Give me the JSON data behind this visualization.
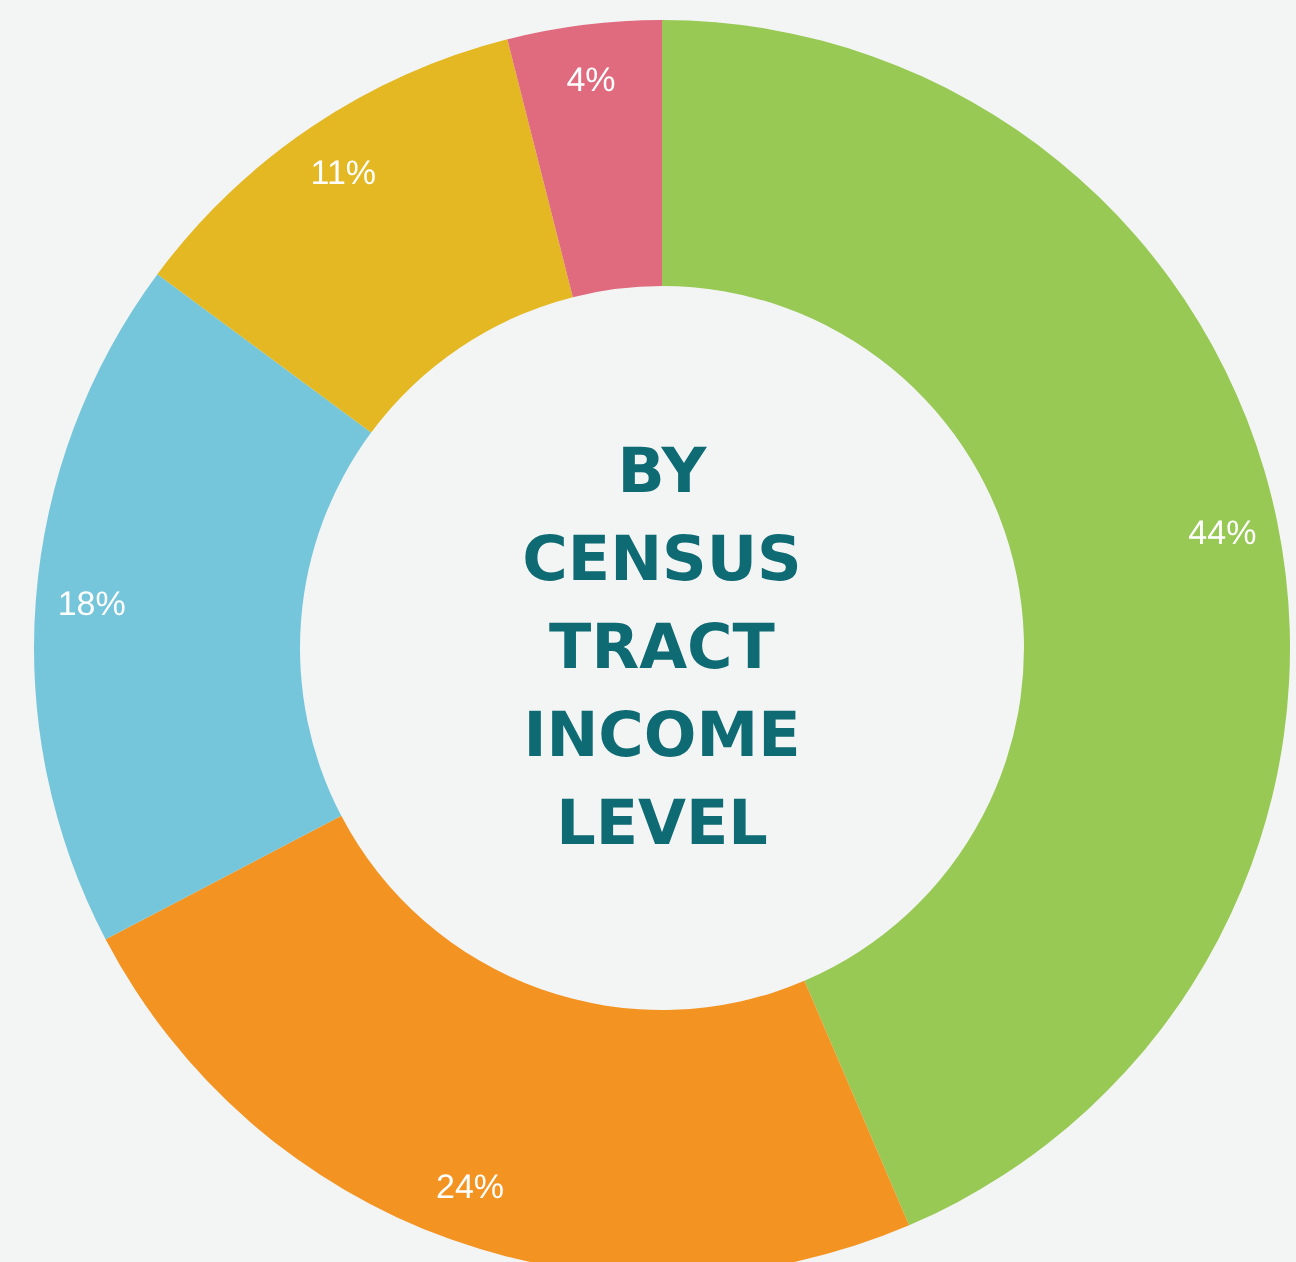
{
  "chart_data": {
    "type": "donut",
    "title": "BY CENSUS TRACT INCOME LEVEL",
    "categories": [
      null,
      null,
      null,
      null,
      null
    ],
    "values": [
      44,
      24,
      18,
      11,
      4
    ],
    "colors": [
      "#97c954",
      "#f39422",
      "#75c6da",
      "#e4b822",
      "#e06a7e"
    ],
    "value_labels": [
      "44%",
      "24%",
      "18%",
      "11%",
      "4%"
    ]
  }
}
